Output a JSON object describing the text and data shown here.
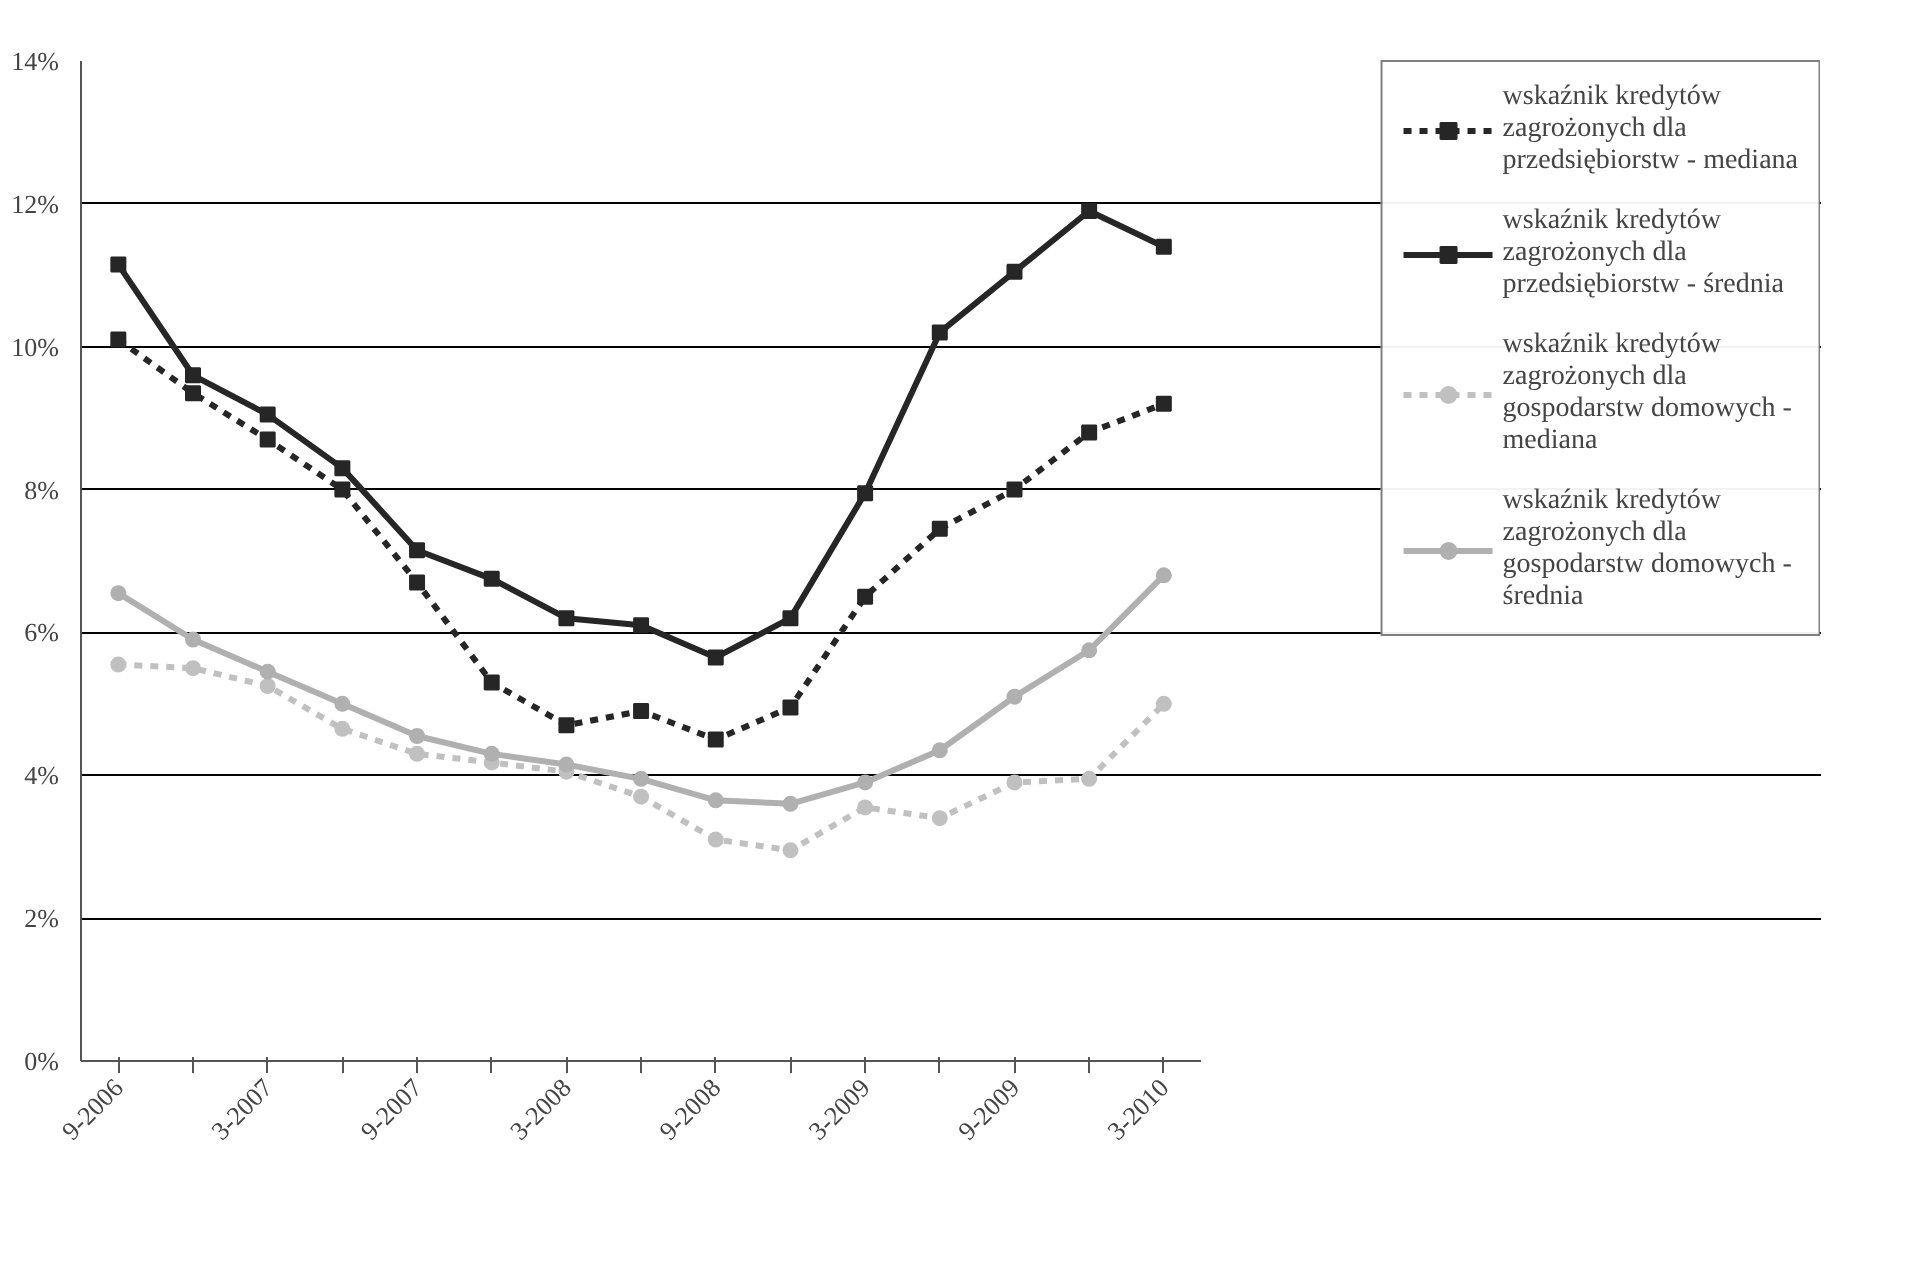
{
  "chart_data": {
    "type": "line",
    "categories": [
      "9-2006",
      null,
      "3-2007",
      null,
      "9-2007",
      null,
      "3-2008",
      null,
      "9-2008",
      null,
      "3-2009",
      null,
      "9-2009",
      null,
      "3-2010"
    ],
    "series": [
      {
        "name": "wskaźnik kredytów zagrożonych dla przedsiębiorstw - mediana",
        "color": "#262626",
        "line_style": "dashed",
        "marker": "square",
        "values": [
          10.1,
          9.35,
          8.7,
          8.0,
          6.7,
          5.3,
          4.7,
          4.9,
          4.5,
          4.95,
          6.5,
          7.45,
          8.0,
          8.8,
          9.2
        ]
      },
      {
        "name": "wskaźnik kredytów zagrożonych dla przedsiębiorstw - średnia",
        "color": "#262626",
        "line_style": "solid",
        "marker": "square",
        "values": [
          11.15,
          9.6,
          9.05,
          8.3,
          7.15,
          6.75,
          6.2,
          6.1,
          5.65,
          6.2,
          7.95,
          10.2,
          11.05,
          11.9,
          11.4
        ]
      },
      {
        "name": "wskaźnik kredytów zagrożonych dla gospodarstw domowych - mediana",
        "color": "#c0c0c0",
        "line_style": "dashed",
        "marker": "circle",
        "values": [
          5.55,
          5.5,
          5.25,
          4.65,
          4.3,
          4.18,
          4.05,
          3.7,
          3.1,
          2.95,
          3.55,
          3.4,
          3.9,
          3.95,
          5.0
        ]
      },
      {
        "name": "wskaźnik kredytów zagrożonych dla gospodarstw domowych - średnia",
        "color": "#b0b0b0",
        "line_style": "solid",
        "marker": "circle",
        "values": [
          6.55,
          5.9,
          5.45,
          5.0,
          4.55,
          4.3,
          4.15,
          3.95,
          3.65,
          3.6,
          3.9,
          4.35,
          5.1,
          5.75,
          6.8
        ]
      }
    ],
    "ylim": [
      0,
      14
    ],
    "yticks": [
      {
        "value": 0,
        "label": "0%"
      },
      {
        "value": 2,
        "label": "2%"
      },
      {
        "value": 4,
        "label": "4%"
      },
      {
        "value": 6,
        "label": "6%"
      },
      {
        "value": 8,
        "label": "8%"
      },
      {
        "value": 10,
        "label": "10%"
      },
      {
        "value": 12,
        "label": "12%"
      },
      {
        "value": 14,
        "label": "14%"
      }
    ],
    "grid": "y",
    "legend": "right"
  }
}
